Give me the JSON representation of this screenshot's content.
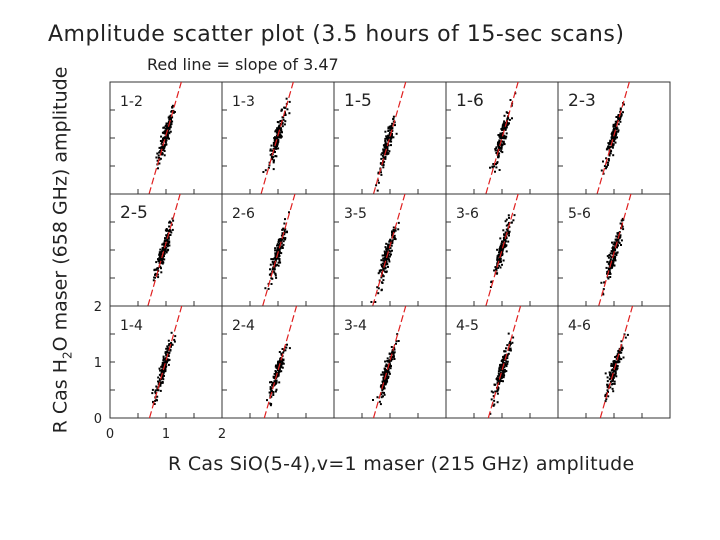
{
  "title": "Amplitude scatter plot (3.5 hours of 15-sec scans)",
  "subtitle": "Red line = slope of 3.47",
  "ylabel": {
    "pre": "R Cas H",
    "sub": "2",
    "post": "O maser (658 GHz) amplitude"
  },
  "xlabel": "R Cas SiO(5-4),v=1 maser (215 GHz) amplitude",
  "colors": {
    "points": "#000000",
    "fit_line": "#e02020",
    "axes": "#333333"
  },
  "chart_data": {
    "type": "scatter",
    "layout": "3x5 small multiples",
    "xlim": [
      0,
      2
    ],
    "ylim": [
      0,
      2
    ],
    "x_ticks": [
      "0",
      "1",
      "2"
    ],
    "y_ticks": [
      "0",
      "1",
      "2"
    ],
    "fit_line": {
      "slope": 3.47,
      "style": "dashed",
      "color": "#e02020"
    },
    "panels": [
      {
        "label": "1-2",
        "center": [
          1.0,
          1.05
        ]
      },
      {
        "label": "1-3",
        "center": [
          1.0,
          1.05
        ]
      },
      {
        "label": "1-5",
        "center": [
          0.95,
          0.85
        ]
      },
      {
        "label": "1-6",
        "center": [
          1.0,
          1.0
        ]
      },
      {
        "label": "2-3",
        "center": [
          1.0,
          1.05
        ]
      },
      {
        "label": "2-5",
        "center": [
          0.95,
          0.95
        ]
      },
      {
        "label": "2-6",
        "center": [
          1.0,
          0.95
        ]
      },
      {
        "label": "3-5",
        "center": [
          0.95,
          0.9
        ]
      },
      {
        "label": "3-6",
        "center": [
          1.0,
          1.0
        ]
      },
      {
        "label": "5-6",
        "center": [
          1.0,
          0.95
        ]
      },
      {
        "label": "1-4",
        "center": [
          0.95,
          0.85
        ]
      },
      {
        "label": "2-4",
        "center": [
          1.0,
          0.85
        ]
      },
      {
        "label": "3-4",
        "center": [
          0.95,
          0.85
        ]
      },
      {
        "label": "4-5",
        "center": [
          1.0,
          0.85
        ]
      },
      {
        "label": "4-6",
        "center": [
          1.0,
          0.85
        ]
      }
    ]
  }
}
